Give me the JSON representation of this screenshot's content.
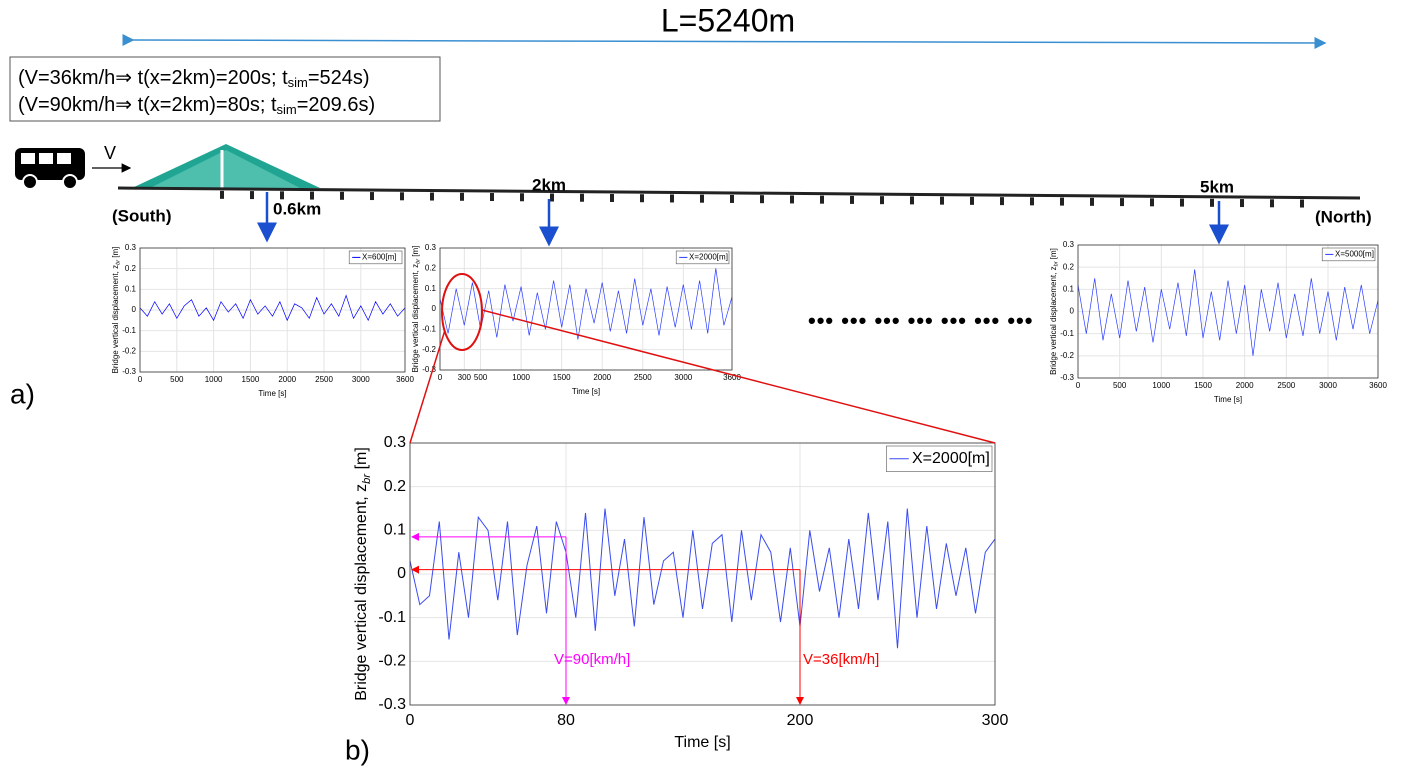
{
  "diagram": {
    "length_label": "L=5240m",
    "conditions": [
      {
        "text": "(V=36km/h⇒ t(x=2km)=200s; t",
        "sub": "sim",
        "tail": "=524s)"
      },
      {
        "text": "(V=90km/h⇒ t(x=2km)=80s; t",
        "sub": "sim",
        "tail": "=209.6s)"
      }
    ],
    "speed_label": "V",
    "south": "(South)",
    "north": "(North)",
    "locations": [
      "0.6km",
      "2km",
      "5km"
    ],
    "panel_labels": [
      "a)",
      "b)"
    ]
  },
  "chart_data": [
    {
      "type": "line",
      "x": [
        0,
        100,
        200,
        300,
        400,
        500,
        600,
        700,
        800,
        900,
        1000,
        1100,
        1200,
        1300,
        1400,
        1500,
        1600,
        1700,
        1800,
        1900,
        2000,
        2100,
        2200,
        2300,
        2400,
        2500,
        2600,
        2700,
        2800,
        2900,
        3000,
        3100,
        3200,
        3300,
        3400,
        3500,
        3600
      ],
      "series": [
        {
          "name": "X=600[m]",
          "color": "#0000ff",
          "values": [
            0.01,
            -0.03,
            0.04,
            -0.02,
            0.03,
            -0.04,
            0.02,
            0.05,
            -0.03,
            0.01,
            -0.05,
            0.04,
            -0.01,
            0.03,
            -0.04,
            0.05,
            -0.02,
            0.02,
            -0.03,
            0.04,
            -0.05,
            0.03,
            0.01,
            -0.04,
            0.06,
            -0.02,
            0.03,
            -0.03,
            0.07,
            -0.04,
            0.02,
            -0.05,
            0.04,
            -0.02,
            0.03,
            -0.03,
            0.01
          ]
        }
      ],
      "xlim": [
        0,
        3600
      ],
      "ylim": [
        -0.3,
        0.3
      ],
      "xticks": [
        0,
        500,
        1000,
        1500,
        2000,
        2500,
        3000,
        3600
      ],
      "yticks": [
        -0.3,
        -0.2,
        -0.1,
        0,
        0.1,
        0.2,
        0.3
      ],
      "xlabel": "Time [s]",
      "ylabel": {
        "main": "Bridge vertical displacement, z",
        "sub": "br",
        "unit": " [m]"
      },
      "grid": true,
      "legend": "upper right"
    },
    {
      "type": "line",
      "x": [
        0,
        100,
        200,
        300,
        400,
        500,
        600,
        700,
        800,
        900,
        1000,
        1100,
        1200,
        1300,
        1400,
        1500,
        1600,
        1700,
        1800,
        1900,
        2000,
        2100,
        2200,
        2300,
        2400,
        2500,
        2600,
        2700,
        2800,
        2900,
        3000,
        3100,
        3200,
        3300,
        3400,
        3500,
        3600
      ],
      "series": [
        {
          "name": "X=2000[m]",
          "color": "#2a3cff",
          "values": [
            0.05,
            -0.12,
            0.1,
            -0.08,
            0.13,
            -0.1,
            0.09,
            -0.14,
            0.12,
            -0.06,
            0.11,
            -0.13,
            0.08,
            -0.1,
            0.14,
            -0.09,
            0.12,
            -0.15,
            0.1,
            -0.07,
            0.13,
            -0.11,
            0.09,
            -0.12,
            0.15,
            -0.08,
            0.1,
            -0.13,
            0.11,
            -0.09,
            0.12,
            -0.1,
            0.14,
            -0.12,
            0.2,
            -0.08,
            0.06
          ]
        }
      ],
      "xlim": [
        0,
        3600
      ],
      "ylim": [
        -0.3,
        0.3
      ],
      "xticks": [
        0,
        300,
        500,
        1000,
        1500,
        2000,
        2500,
        3000,
        3600
      ],
      "yticks": [
        -0.3,
        -0.2,
        -0.1,
        0,
        0.1,
        0.2,
        0.3
      ],
      "xlabel": "Time [s]",
      "ylabel": {
        "main": "Bridge vertical displacement, z",
        "sub": "br",
        "unit": " [m]"
      },
      "grid": true,
      "legend": "upper right"
    },
    {
      "type": "line",
      "x": [
        0,
        100,
        200,
        300,
        400,
        500,
        600,
        700,
        800,
        900,
        1000,
        1100,
        1200,
        1300,
        1400,
        1500,
        1600,
        1700,
        1800,
        1900,
        2000,
        2100,
        2200,
        2300,
        2400,
        2500,
        2600,
        2700,
        2800,
        2900,
        3000,
        3100,
        3200,
        3300,
        3400,
        3500,
        3600
      ],
      "series": [
        {
          "name": "X=5000[m]",
          "color": "#2a3cff",
          "values": [
            0.12,
            -0.1,
            0.15,
            -0.13,
            0.08,
            -0.12,
            0.14,
            -0.09,
            0.11,
            -0.14,
            0.1,
            -0.08,
            0.13,
            -0.11,
            0.19,
            -0.12,
            0.09,
            -0.13,
            0.14,
            -0.1,
            0.12,
            -0.2,
            0.1,
            -0.09,
            0.13,
            -0.12,
            0.08,
            -0.11,
            0.15,
            -0.1,
            0.09,
            -0.13,
            0.11,
            -0.08,
            0.12,
            -0.1,
            0.05
          ]
        }
      ],
      "xlim": [
        0,
        3600
      ],
      "ylim": [
        -0.3,
        0.3
      ],
      "xticks": [
        0,
        500,
        1000,
        1500,
        2000,
        2500,
        3000,
        3600
      ],
      "yticks": [
        -0.3,
        -0.2,
        -0.1,
        0,
        0.1,
        0.2,
        0.3
      ],
      "xlabel": "Time [s]",
      "ylabel": {
        "main": "Bridge vertical displacement, z",
        "sub": "br",
        "unit": " [m]"
      },
      "grid": true,
      "legend": "upper right"
    },
    {
      "type": "line",
      "x": [
        0,
        5,
        10,
        15,
        20,
        25,
        30,
        35,
        40,
        45,
        50,
        55,
        60,
        65,
        70,
        75,
        80,
        85,
        90,
        95,
        100,
        105,
        110,
        115,
        120,
        125,
        130,
        135,
        140,
        145,
        150,
        155,
        160,
        165,
        170,
        175,
        180,
        185,
        190,
        195,
        200,
        205,
        210,
        215,
        220,
        225,
        230,
        235,
        240,
        245,
        250,
        255,
        260,
        265,
        270,
        275,
        280,
        285,
        290,
        295,
        300
      ],
      "series": [
        {
          "name": "X=2000[m]",
          "color": "#3a4cf0",
          "values": [
            0.03,
            -0.07,
            -0.05,
            0.12,
            -0.15,
            0.05,
            -0.1,
            0.13,
            0.1,
            -0.06,
            0.12,
            -0.14,
            0.02,
            0.11,
            -0.09,
            0.12,
            0.05,
            -0.1,
            0.14,
            -0.13,
            0.15,
            -0.05,
            0.08,
            -0.12,
            0.13,
            -0.07,
            0.03,
            0.05,
            -0.1,
            0.1,
            -0.08,
            0.07,
            0.09,
            -0.11,
            0.1,
            -0.06,
            0.09,
            0.05,
            -0.11,
            0.06,
            -0.12,
            0.1,
            -0.04,
            0.06,
            -0.1,
            0.08,
            -0.08,
            0.14,
            -0.06,
            0.12,
            -0.17,
            0.15,
            -0.1,
            0.11,
            -0.08,
            0.07,
            -0.05,
            0.06,
            -0.09,
            0.05,
            0.08
          ]
        }
      ],
      "xlim": [
        0,
        300
      ],
      "ylim": [
        -0.3,
        0.3
      ],
      "xticks": [
        0,
        80,
        200,
        300
      ],
      "yticks": [
        -0.3,
        -0.2,
        -0.1,
        0,
        0.1,
        0.2,
        0.3
      ],
      "xlabel": "Time [s]",
      "ylabel": {
        "main": "Bridge vertical displacement, z",
        "sub": "br",
        "unit": " [m]"
      },
      "grid": true,
      "legend": "upper right",
      "annotations": [
        {
          "text": "V=90[km/h]",
          "color": "#ff00ff"
        },
        {
          "text": "V=36[km/h]",
          "color": "#ff0000"
        }
      ]
    }
  ]
}
